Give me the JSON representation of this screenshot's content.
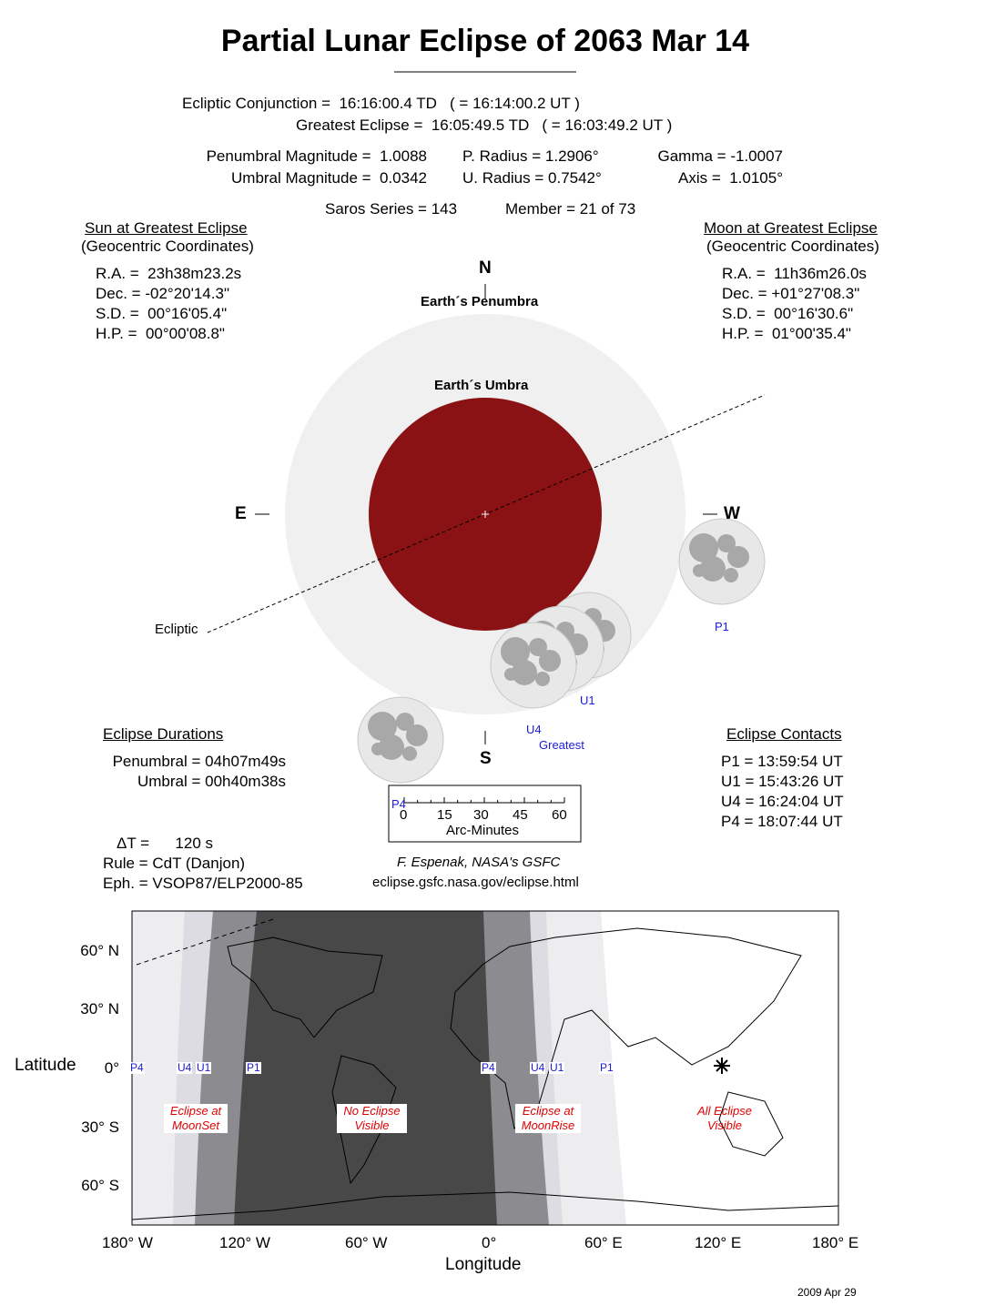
{
  "title": "Partial Lunar Eclipse of  2063 Mar 14",
  "header": {
    "conjunction": "Ecliptic Conjunction =  16:16:00.4 TD   ( = 16:14:00.2 UT )",
    "greatest": "Greatest Eclipse =  16:05:49.5 TD   ( = 16:03:49.2 UT )",
    "pen_mag": "Penumbral Magnitude =  1.0088",
    "umb_mag": "Umbral Magnitude =  0.0342",
    "p_radius": "P. Radius = 1.2906°",
    "u_radius": "U. Radius = 0.7542°",
    "gamma": "Gamma = -1.0007",
    "axis": "Axis =  1.0105°",
    "saros": "Saros Series = 143",
    "member": "Member = 21 of 73"
  },
  "sun": {
    "heading": "Sun at Greatest Eclipse",
    "sub": "(Geocentric Coordinates)",
    "lines": [
      "R.A. =  23h38m23.2s",
      "Dec. = -02°20'14.3\"",
      "S.D. =  00°16'05.4\"",
      "H.P. =  00°00'08.8\""
    ]
  },
  "moon": {
    "heading": "Moon at Greatest Eclipse",
    "sub": "(Geocentric Coordinates)",
    "lines": [
      "R.A. =  11h36m26.0s",
      "Dec. = +01°27'08.3\"",
      "S.D. =  00°16'30.6\"",
      "H.P. =  01°00'35.4\""
    ]
  },
  "diagram": {
    "north": "N",
    "south": "S",
    "east": "E",
    "west": "W",
    "penumbra": "Earth´s Penumbra",
    "umbra": "Earth´s Umbra",
    "ecliptic": "Ecliptic",
    "labels": {
      "p1": "P1",
      "u1": "U1",
      "u4": "U4",
      "greatest": "Greatest",
      "p4": "P4"
    },
    "colors": {
      "umbra": "#8b1214",
      "penumbra": "#f0f0f0",
      "moon": "#bdbdbd",
      "contact_label": "#1a1adc"
    }
  },
  "durations": {
    "heading": "Eclipse Durations",
    "penumbral": "Penumbral = 04h07m49s",
    "umbral": "Umbral = 00h40m38s"
  },
  "contacts": {
    "heading": "Eclipse Contacts",
    "lines": [
      "P1 = 13:59:54 UT",
      "U1 = 15:43:26 UT",
      "U4 = 16:24:04 UT",
      "P4 = 18:07:44 UT"
    ]
  },
  "scale": {
    "ticks": [
      "0",
      "15",
      "30",
      "45",
      "60"
    ],
    "label": "Arc-Minutes",
    "p4": "P4"
  },
  "params": {
    "delta_t": "ΔT =      120 s",
    "rule": "Rule = CdT (Danjon)",
    "eph": "Eph. = VSOP87/ELP2000-85"
  },
  "credit": {
    "author": "F. Espenak, NASA's GSFC",
    "url": "eclipse.gsfc.nasa.gov/eclipse.html"
  },
  "map": {
    "ylabel": "Latitude",
    "xlabel": "Longitude",
    "lat_ticks": [
      "60° N",
      "30° N",
      "0°",
      "30° S",
      "60° S"
    ],
    "lon_ticks": [
      "180° W",
      "120° W",
      "60° W",
      "0°",
      "60° E",
      "120° E",
      "180° E"
    ],
    "contact_labels": [
      "P4",
      "U4",
      "U1",
      "P1",
      "P4",
      "U4",
      "U1",
      "P1"
    ],
    "regions": [
      {
        "line1": "Eclipse at",
        "line2": "MoonSet"
      },
      {
        "line1": "No Eclipse",
        "line2": "Visible"
      },
      {
        "line1": "Eclipse at",
        "line2": "MoonRise"
      },
      {
        "line1": "All Eclipse",
        "line2": "Visible"
      }
    ],
    "colors": {
      "none": "#484848",
      "umbral_partial": "#8c8c90",
      "penumbral_partial": "#dcdce2",
      "penumbral": "#ededf0",
      "all": "#ffffff"
    }
  },
  "date": "2009 Apr 29"
}
